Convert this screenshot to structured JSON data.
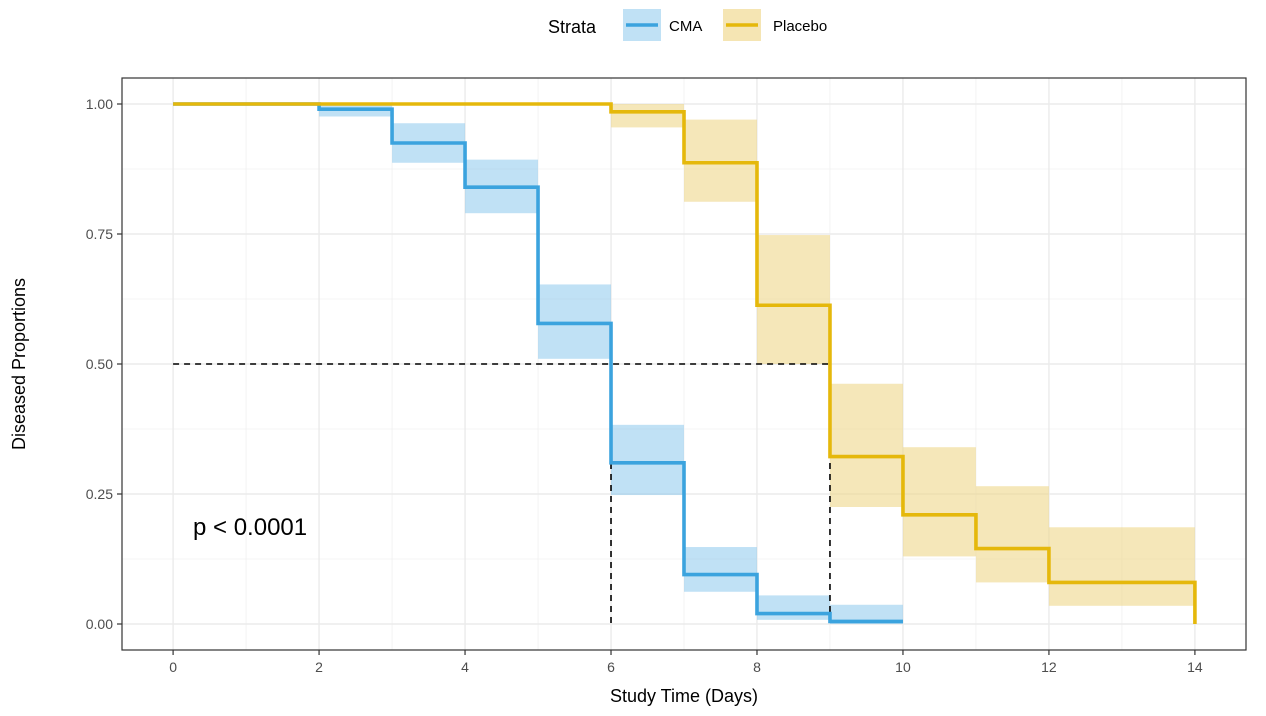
{
  "chart_data": {
    "type": "line",
    "subtype": "kaplan-meier step",
    "xlabel": "Study Time (Days)",
    "ylabel": "Diseased Proportions",
    "xlim": [
      -0.7,
      14.7
    ],
    "ylim": [
      -0.05,
      1.05
    ],
    "x_ticks": [
      0,
      2,
      4,
      6,
      8,
      10,
      12,
      14
    ],
    "x_tick_labels": [
      "0",
      "2",
      "4",
      "6",
      "8",
      "10",
      "12",
      "14"
    ],
    "y_ticks": [
      0,
      0.25,
      0.5,
      0.75,
      1.0
    ],
    "y_tick_labels": [
      "0.00",
      "0.25",
      "0.50",
      "0.75",
      "1.00"
    ],
    "grid": true,
    "legend": {
      "title": "Strata",
      "position": "top",
      "entries": [
        "CMA",
        "Placebo"
      ]
    },
    "annotation": "p < 0.0001",
    "median_reference": {
      "y": 0.5,
      "x_values": [
        6,
        9
      ]
    },
    "series": [
      {
        "name": "CMA",
        "color": "#3BA3DE",
        "band_color": "#8CC8EC",
        "steps": [
          {
            "x0": 0,
            "x1": 2,
            "y": 1.0,
            "lo": 1.0,
            "hi": 1.0
          },
          {
            "x0": 2,
            "x1": 3,
            "y": 0.99,
            "lo": 0.976,
            "hi": 1.0
          },
          {
            "x0": 3,
            "x1": 4,
            "y": 0.925,
            "lo": 0.887,
            "hi": 0.963
          },
          {
            "x0": 4,
            "x1": 5,
            "y": 0.84,
            "lo": 0.79,
            "hi": 0.893
          },
          {
            "x0": 5,
            "x1": 6,
            "y": 0.578,
            "lo": 0.51,
            "hi": 0.653
          },
          {
            "x0": 6,
            "x1": 7,
            "y": 0.31,
            "lo": 0.248,
            "hi": 0.383
          },
          {
            "x0": 7,
            "x1": 8,
            "y": 0.095,
            "lo": 0.062,
            "hi": 0.148
          },
          {
            "x0": 8,
            "x1": 9,
            "y": 0.02,
            "lo": 0.008,
            "hi": 0.055
          },
          {
            "x0": 9,
            "x1": 10,
            "y": 0.005,
            "lo": 0.0,
            "hi": 0.037
          }
        ]
      },
      {
        "name": "Placebo",
        "color": "#E5B80B",
        "band_color": "#EFD78A",
        "steps": [
          {
            "x0": 0,
            "x1": 6,
            "y": 1.0,
            "lo": 1.0,
            "hi": 1.0
          },
          {
            "x0": 6,
            "x1": 7,
            "y": 0.985,
            "lo": 0.955,
            "hi": 1.0
          },
          {
            "x0": 7,
            "x1": 8,
            "y": 0.887,
            "lo": 0.812,
            "hi": 0.97
          },
          {
            "x0": 8,
            "x1": 9,
            "y": 0.613,
            "lo": 0.5,
            "hi": 0.748
          },
          {
            "x0": 9,
            "x1": 10,
            "y": 0.322,
            "lo": 0.225,
            "hi": 0.462
          },
          {
            "x0": 10,
            "x1": 11,
            "y": 0.21,
            "lo": 0.13,
            "hi": 0.34
          },
          {
            "x0": 11,
            "x1": 12,
            "y": 0.145,
            "lo": 0.08,
            "hi": 0.265
          },
          {
            "x0": 12,
            "x1": 14,
            "y": 0.08,
            "lo": 0.035,
            "hi": 0.186
          }
        ],
        "end": {
          "x": 14,
          "y": 0.0
        }
      }
    ]
  }
}
